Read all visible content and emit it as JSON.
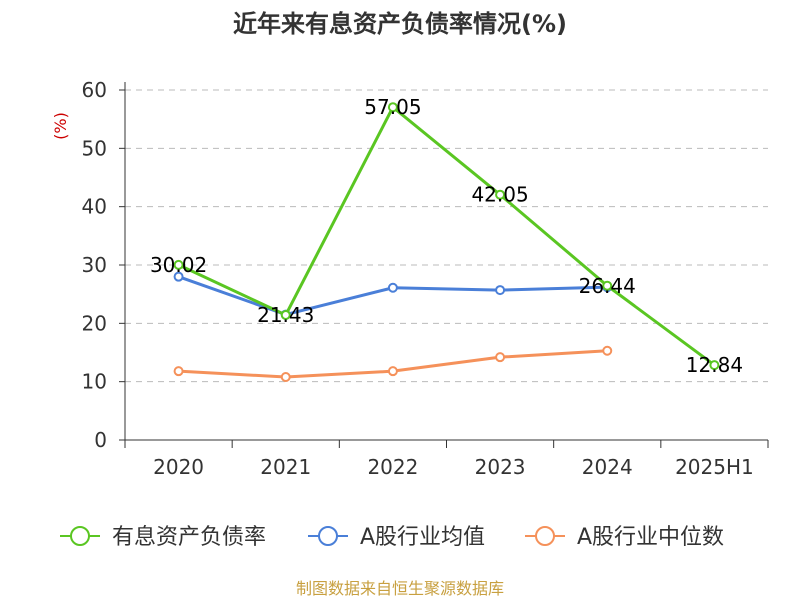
{
  "chart_data": {
    "type": "line",
    "title": "近年来有息资产负债率情况(%)",
    "ylabel": "(%)",
    "ylim": [
      0,
      60
    ],
    "yticks": [
      "0",
      "10",
      "20",
      "30",
      "40",
      "50",
      "60"
    ],
    "categories": [
      "2020",
      "2021",
      "2022",
      "2023",
      "2024",
      "2025H1"
    ],
    "series": [
      {
        "name": "有息资产负债率",
        "color": "#5ac622",
        "values": [
          30.02,
          21.43,
          57.05,
          42.05,
          26.44,
          12.84
        ],
        "labels": [
          "30.02",
          "21.43",
          "57.05",
          "42.05",
          "26.44",
          "12.84"
        ]
      },
      {
        "name": "A股行业均值",
        "color": "#4a7fd8",
        "values": [
          28.0,
          21.5,
          26.1,
          25.7,
          26.2,
          null
        ]
      },
      {
        "name": "A股行业中位数",
        "color": "#f5915a",
        "values": [
          11.8,
          10.8,
          11.8,
          14.2,
          15.3,
          null
        ]
      }
    ],
    "grid": true,
    "legend_position": "bottom"
  },
  "source": "制图数据来自恒生聚源数据库"
}
